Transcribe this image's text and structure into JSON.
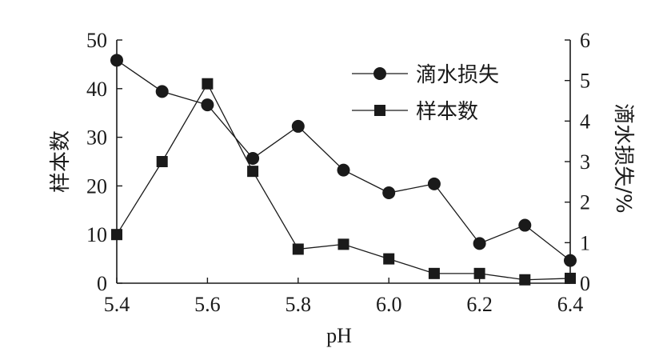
{
  "chart_data": {
    "type": "line",
    "xlabel": "pH",
    "left_axis": {
      "label": "样本数",
      "ylim": [
        0,
        50
      ],
      "ticks": [
        0,
        10,
        20,
        30,
        40,
        50
      ]
    },
    "right_axis": {
      "label": "滴水损失/%",
      "ylim": [
        0,
        6
      ],
      "ticks": [
        0,
        1,
        2,
        3,
        4,
        5,
        6
      ]
    },
    "xlim": [
      5.4,
      6.4
    ],
    "xticks": [
      "5.4",
      "5.6",
      "5.8",
      "6.0",
      "6.2",
      "6.4"
    ],
    "xtick_values": [
      5.4,
      5.6,
      5.8,
      6.0,
      6.2,
      6.4
    ],
    "grid": false,
    "legend_position": "top-right",
    "series": [
      {
        "name": "滴水损失",
        "axis": "right",
        "marker": "circle",
        "color": "#1a1a1a",
        "x": [
          5.4,
          5.5,
          5.6,
          5.7,
          5.8,
          5.9,
          6.0,
          6.1,
          6.2,
          6.3,
          6.4
        ],
        "y": [
          5.5,
          4.73,
          4.4,
          3.08,
          3.87,
          2.79,
          2.23,
          2.45,
          0.98,
          1.43,
          0.56
        ]
      },
      {
        "name": "样本数",
        "axis": "left",
        "marker": "square",
        "color": "#1a1a1a",
        "x": [
          5.4,
          5.5,
          5.6,
          5.7,
          5.8,
          5.9,
          6.0,
          6.1,
          6.2,
          6.3,
          6.4
        ],
        "y": [
          10,
          25,
          41,
          23,
          7,
          8,
          5,
          2,
          2,
          0.7,
          1
        ]
      }
    ]
  }
}
